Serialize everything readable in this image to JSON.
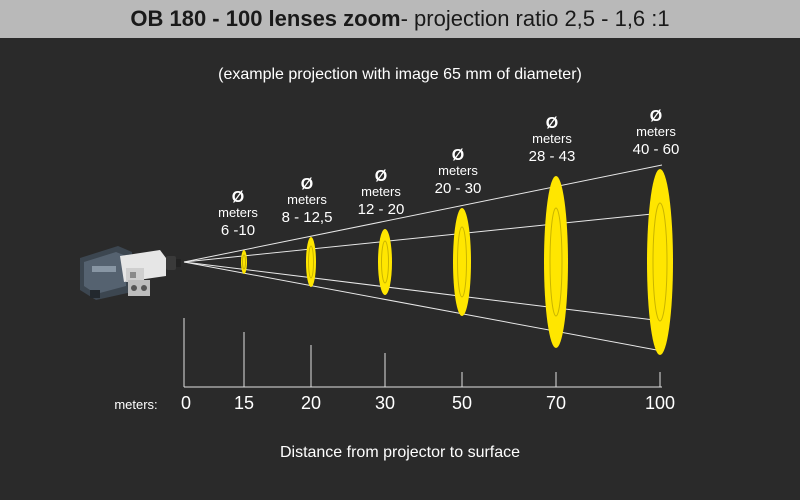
{
  "header": {
    "title_bold": "OB 180 - 100 lenses zoom",
    "title_rest": " - projection ratio 2,5 - 1,6 :1"
  },
  "subtitle": "(example projection with image 65 mm of diameter)",
  "caption": "Distance from projector to surface",
  "axis": {
    "unit_label": "meters:",
    "diameter_symbol": "Ø",
    "diameter_unit": "meters"
  },
  "colors": {
    "background": "#2a2a2a",
    "title_bar": "#b9b9b9",
    "ellipse_fill": "#ffe600",
    "ellipse_inner_stroke": "#c9b400",
    "beam_line": "#e8e8e8"
  },
  "icons": {
    "projector": "projector-icon"
  },
  "projections": [
    {
      "distance": "0",
      "diameter": ""
    },
    {
      "distance": "15",
      "diameter": "6 -10"
    },
    {
      "distance": "20",
      "diameter": "8 - 12,5"
    },
    {
      "distance": "30",
      "diameter": "12 - 20"
    },
    {
      "distance": "50",
      "diameter": "20 - 30"
    },
    {
      "distance": "70",
      "diameter": "28 - 43"
    },
    {
      "distance": "100",
      "diameter": "40 - 60"
    }
  ]
}
